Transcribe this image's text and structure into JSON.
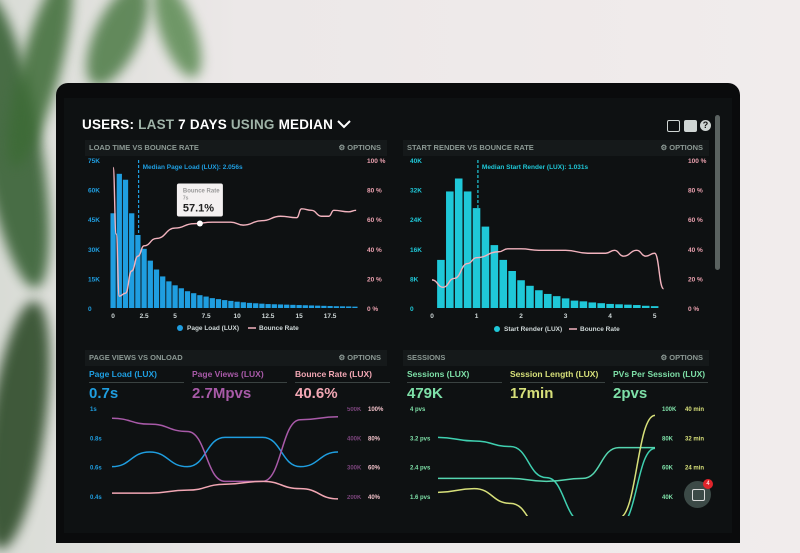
{
  "header": {
    "prefix": "USERS:",
    "mid1": "LAST",
    "days": "7 DAYS",
    "mid2": "USING",
    "mode": "MEDIAN",
    "chevron": "chevron-down-icon"
  },
  "header_icons": [
    "monitor-icon",
    "share-icon",
    "help-icon"
  ],
  "help_glyph": "?",
  "options_label": "⚙ OPTIONS",
  "chat_badge": "4",
  "colors": {
    "blue": "#1f9ee0",
    "cyan": "#1fc8d8",
    "pink": "#f2a7b4",
    "purple": "#a85aa8",
    "green": "#7ee0a8",
    "teal": "#3fd0b0",
    "yellow": "#d7e07a"
  },
  "panels": {
    "load": {
      "title": "LOAD TIME VS BOUNCE RATE"
    },
    "render": {
      "title": "START RENDER VS BOUNCE RATE"
    },
    "pageviews": {
      "title": "PAGE VIEWS VS ONLOAD",
      "metrics": [
        {
          "label": "Page Load (LUX)",
          "value": "0.7s"
        },
        {
          "label": "Page Views (LUX)",
          "value": "2.7Mpvs"
        },
        {
          "label": "Bounce Rate (LUX)",
          "value": "40.6%"
        }
      ]
    },
    "sessions": {
      "title": "SESSIONS",
      "metrics": [
        {
          "label": "Sessions (LUX)",
          "value": "479K"
        },
        {
          "label": "Session Length (LUX)",
          "value": "17min"
        },
        {
          "label": "PVs Per Session (LUX)",
          "value": "2pvs"
        }
      ]
    }
  },
  "chart_data": [
    {
      "type": "bar",
      "id": "load",
      "x": [
        0,
        0.5,
        1,
        1.5,
        2,
        2.5,
        3,
        3.5,
        4,
        4.5,
        5,
        5.5,
        6,
        6.5,
        7,
        7.5,
        8,
        8.5,
        9,
        9.5,
        10,
        10.5,
        11,
        11.5,
        12,
        12.5,
        13,
        13.5,
        14,
        14.5,
        15,
        15.5,
        16,
        16.5,
        17,
        17.5,
        18,
        18.5,
        19,
        19.5
      ],
      "values": [
        48000,
        68000,
        65000,
        48000,
        37000,
        30000,
        24000,
        19500,
        16000,
        13500,
        11500,
        10000,
        8500,
        7500,
        6500,
        5800,
        5000,
        4500,
        4000,
        3600,
        3200,
        2900,
        2600,
        2400,
        2200,
        2000,
        1900,
        1800,
        1700,
        1600,
        1500,
        1400,
        1300,
        1200,
        1100,
        1000,
        900,
        850,
        800,
        700
      ],
      "series_name": "Page Load (LUX)",
      "line_name": "Bounce Rate",
      "line": [
        [
          0,
          95
        ],
        [
          0.25,
          50
        ],
        [
          0.5,
          8
        ],
        [
          1,
          10
        ],
        [
          1.5,
          25
        ],
        [
          2,
          35
        ],
        [
          2.5,
          42
        ],
        [
          3.5,
          47
        ],
        [
          5,
          54
        ],
        [
          6.5,
          57
        ],
        [
          8,
          58
        ],
        [
          9.5,
          58
        ],
        [
          10.5,
          56
        ],
        [
          12,
          59
        ],
        [
          13.5,
          62
        ],
        [
          14.8,
          61
        ],
        [
          15.2,
          67
        ],
        [
          16,
          66
        ],
        [
          16.8,
          62
        ],
        [
          17.4,
          62
        ],
        [
          17.8,
          66
        ],
        [
          19,
          65
        ],
        [
          19.6,
          66
        ]
      ],
      "yticks": [
        "0",
        "15K",
        "30K",
        "45K",
        "60K",
        "75K"
      ],
      "ylim": [
        0,
        75000
      ],
      "y2ticks": [
        "0 %",
        "20 %",
        "40 %",
        "60 %",
        "80 %",
        "100 %"
      ],
      "y2lim": [
        0,
        100
      ],
      "xticks": [
        "0",
        "2.5",
        "5",
        "7.5",
        "10",
        "12.5",
        "15",
        "17.5"
      ],
      "xlim": [
        -0.25,
        19.75
      ],
      "median_x": 2.056,
      "median_label": "Median Page Load (LUX): 2.056s",
      "tooltip": {
        "title": "Bounce Rate",
        "sub": "7s",
        "value": "57.1%",
        "x": 7
      }
    },
    {
      "type": "bar",
      "id": "render",
      "x": [
        0.2,
        0.4,
        0.6,
        0.8,
        1.0,
        1.2,
        1.4,
        1.6,
        1.8,
        2.0,
        2.2,
        2.4,
        2.6,
        2.8,
        3.0,
        3.2,
        3.4,
        3.6,
        3.8,
        4.0,
        4.2,
        4.4,
        4.6,
        4.8,
        5.0
      ],
      "values": [
        13000,
        31500,
        35000,
        31500,
        27000,
        22000,
        17000,
        13000,
        10000,
        7500,
        6000,
        4800,
        3800,
        3200,
        2600,
        2000,
        1800,
        1500,
        1300,
        1100,
        1000,
        900,
        800,
        600,
        500
      ],
      "series_name": "Start Render (LUX)",
      "line_name": "Bounce Rate",
      "line": [
        [
          0,
          19
        ],
        [
          0.25,
          14
        ],
        [
          0.5,
          20
        ],
        [
          0.8,
          30
        ],
        [
          1,
          34
        ],
        [
          1.5,
          38
        ],
        [
          1.7,
          40
        ],
        [
          2,
          40
        ],
        [
          2.4,
          39
        ],
        [
          3,
          39
        ],
        [
          3.5,
          37
        ],
        [
          3.9,
          37
        ],
        [
          4.1,
          39
        ],
        [
          4.3,
          35
        ],
        [
          4.6,
          39
        ],
        [
          4.8,
          35
        ],
        [
          5,
          37
        ],
        [
          5.2,
          13
        ]
      ],
      "yticks": [
        "0",
        "8K",
        "16K",
        "24K",
        "32K",
        "40K"
      ],
      "ylim": [
        0,
        40000
      ],
      "y2ticks": [
        "0 %",
        "20 %",
        "40 %",
        "60 %",
        "80 %",
        "100 %"
      ],
      "y2lim": [
        0,
        100
      ],
      "xticks": [
        "0",
        "1",
        "2",
        "3",
        "4",
        "5"
      ],
      "xlim": [
        0,
        5.3
      ],
      "median_x": 1.031,
      "median_label": "Median Start Render (LUX): 1.031s"
    },
    {
      "type": "line",
      "id": "pageviews",
      "x": [
        0,
        1,
        2,
        3,
        4,
        5,
        6
      ],
      "series": [
        {
          "name": "Page Load (LUX)",
          "axis": "left",
          "values": [
            0.6,
            0.7,
            0.6,
            0.8,
            0.8,
            0.6,
            0.7
          ]
        },
        {
          "name": "Page Views (LUX)",
          "axis": "right",
          "values": [
            465,
            445,
            420,
            250,
            250,
            460,
            470
          ]
        },
        {
          "name": "Bounce Rate (LUX)",
          "axis": "right2",
          "values": [
            42,
            42,
            44,
            48,
            50,
            45,
            38
          ]
        }
      ],
      "yticks": [
        "0.4s",
        "0.6s",
        "0.8s",
        "1s"
      ],
      "ylim": [
        0.4,
        1.0
      ],
      "y2ticks": [
        "200K",
        "300K",
        "400K",
        "500K"
      ],
      "y2lim": [
        200,
        500
      ],
      "y3ticks": [
        "40%",
        "60%",
        "80%",
        "100%"
      ],
      "y3lim": [
        40,
        100
      ]
    },
    {
      "type": "line",
      "id": "sessions",
      "x": [
        0,
        1,
        2,
        3,
        4,
        5,
        6
      ],
      "series": [
        {
          "name": "PVs Per Session (LUX)",
          "axis": "left",
          "values": [
            3.2,
            3.1,
            2.95,
            2.1,
            0.9,
            0.8,
            2.9
          ]
        },
        {
          "name": "Sessions (LUX)",
          "axis": "right",
          "values": [
            52,
            52,
            52,
            50,
            52,
            73,
            73
          ]
        },
        {
          "name": "Session Length (LUX)",
          "axis": "right2",
          "values": [
            17,
            18,
            14,
            6,
            4,
            10,
            38
          ]
        }
      ],
      "yticks": [
        "1.6 pvs",
        "2.4 pvs",
        "3.2 pvs",
        "4 pvs"
      ],
      "ylim": [
        1.6,
        4
      ],
      "y2ticks": [
        "40K",
        "60K",
        "80K",
        "100K"
      ],
      "y2lim": [
        40,
        100
      ],
      "y3ticks": [
        "16 min",
        "24 min",
        "32 min",
        "40 min"
      ],
      "y3lim": [
        16,
        40
      ]
    }
  ]
}
